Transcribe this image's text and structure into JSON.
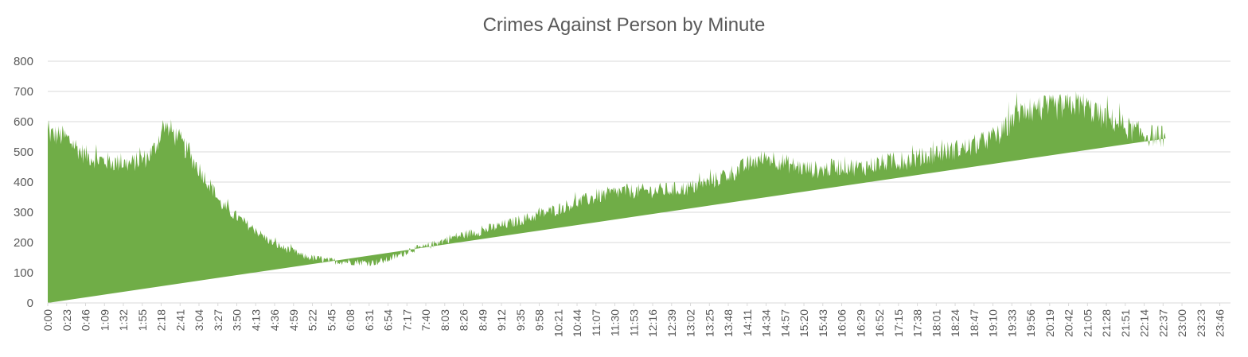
{
  "chart_data": {
    "type": "area",
    "title": "Crimes Against Person by Minute",
    "xlabel": "",
    "ylabel": "",
    "ylim": [
      0,
      800
    ],
    "yticks": [
      0,
      100,
      200,
      300,
      400,
      500,
      600,
      700,
      800
    ],
    "grid": true,
    "legend": "none",
    "color": "#70ad47",
    "x_tick_labels": [
      "0:00",
      "0:23",
      "0:46",
      "1:09",
      "1:32",
      "1:55",
      "2:18",
      "2:41",
      "3:04",
      "3:27",
      "3:50",
      "4:13",
      "4:36",
      "4:59",
      "5:22",
      "5:45",
      "6:08",
      "6:31",
      "6:54",
      "7:17",
      "7:40",
      "8:03",
      "8:26",
      "8:49",
      "9:12",
      "9:35",
      "9:58",
      "10:21",
      "10:44",
      "11:07",
      "11:30",
      "11:53",
      "12:16",
      "12:39",
      "13:02",
      "13:25",
      "13:48",
      "14:11",
      "14:34",
      "14:57",
      "15:20",
      "15:43",
      "16:06",
      "16:29",
      "16:52",
      "17:15",
      "17:38",
      "18:01",
      "18:24",
      "18:47",
      "19:10",
      "19:33",
      "19:56",
      "20:19",
      "20:42",
      "21:05",
      "21:28",
      "21:51",
      "22:14",
      "22:37",
      "23:00",
      "23:23",
      "23:46"
    ],
    "x_minutes": [
      0,
      23,
      46,
      69,
      92,
      115,
      138,
      161,
      184,
      207,
      230,
      253,
      276,
      299,
      322,
      345,
      368,
      391,
      414,
      437,
      460,
      483,
      506,
      529,
      552,
      575,
      598,
      621,
      644,
      667,
      690,
      713,
      736,
      759,
      782,
      805,
      828,
      851,
      874,
      897,
      920,
      943,
      966,
      989,
      1012,
      1035,
      1058,
      1081,
      1104,
      1127,
      1150,
      1173,
      1196,
      1219,
      1242,
      1265,
      1288,
      1311,
      1334,
      1357,
      1380,
      1403,
      1426
    ],
    "x_domain_minutes": [
      0,
      1439
    ],
    "series_by_minute_envelope": {
      "minutes": [
        0,
        10,
        20,
        30,
        40,
        50,
        60,
        70,
        80,
        90,
        100,
        110,
        120,
        130,
        140,
        150,
        160,
        170,
        180,
        190,
        200,
        210,
        220,
        230,
        240,
        250,
        260,
        270,
        280,
        290,
        300,
        310,
        320,
        330,
        340,
        350,
        360,
        370,
        380,
        390,
        400,
        410,
        420,
        430,
        440,
        450,
        460,
        470,
        480,
        490,
        500,
        510,
        520,
        530,
        540,
        550,
        560,
        570,
        580,
        590,
        600,
        620,
        640,
        660,
        680,
        700,
        720,
        740,
        760,
        780,
        800,
        820,
        840,
        860,
        880,
        900,
        920,
        940,
        960,
        970,
        980,
        990,
        1000,
        1010,
        1020,
        1040,
        1060,
        1080,
        1100,
        1120,
        1140,
        1160,
        1180,
        1200,
        1220,
        1240,
        1250,
        1260,
        1264,
        1268,
        1280,
        1300,
        1320,
        1340,
        1360,
        1380,
        1400,
        1420,
        1439
      ],
      "values": [
        560,
        555,
        550,
        530,
        500,
        485,
        475,
        470,
        465,
        462,
        460,
        470,
        480,
        510,
        580,
        570,
        540,
        500,
        460,
        420,
        380,
        330,
        305,
        285,
        265,
        245,
        225,
        205,
        190,
        178,
        170,
        155,
        150,
        145,
        140,
        138,
        137,
        136,
        135,
        133,
        135,
        140,
        150,
        160,
        175,
        180,
        185,
        195,
        205,
        215,
        222,
        228,
        234,
        240,
        248,
        255,
        262,
        270,
        278,
        285,
        295,
        310,
        330,
        345,
        360,
        370,
        370,
        372,
        375,
        380,
        395,
        415,
        440,
        470,
        480,
        460,
        445,
        440,
        450,
        455,
        450,
        448,
        455,
        460,
        465,
        470,
        480,
        495,
        505,
        515,
        535,
        560,
        630,
        640,
        645,
        650,
        660,
        655,
        650,
        640,
        620,
        600,
        570,
        555,
        550
      ]
    }
  }
}
